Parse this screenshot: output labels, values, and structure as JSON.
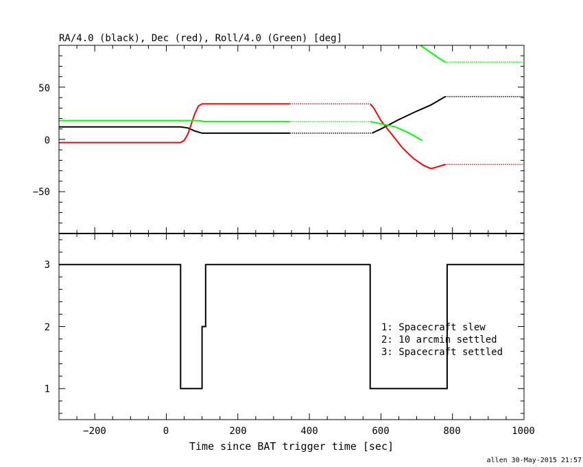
{
  "chart_data": [
    {
      "type": "line",
      "title": "RA/4.0 (black), Dec (red), Roll/4.0 (Green) [deg]",
      "xlim": [
        -300,
        1000
      ],
      "ylim": [
        -90,
        90
      ],
      "yticks": [
        -50,
        0,
        50
      ],
      "ytick_labels": [
        "−50",
        "0",
        "50"
      ],
      "series": [
        {
          "color": "#000000",
          "style": "solid",
          "points": [
            [
              -300,
              12
            ],
            [
              40,
              12
            ],
            [
              60,
              11
            ],
            [
              80,
              8
            ],
            [
              100,
              6
            ],
            [
              345,
              6
            ]
          ]
        },
        {
          "color": "#000000",
          "style": "dotted",
          "points": [
            [
              345,
              6
            ],
            [
              575,
              6
            ]
          ]
        },
        {
          "color": "#000000",
          "style": "solid",
          "points": [
            [
              575,
              6
            ],
            [
              600,
              10
            ],
            [
              650,
              19
            ],
            [
              700,
              27
            ],
            [
              740,
              33
            ],
            [
              780,
              41
            ]
          ]
        },
        {
          "color": "#000000",
          "style": "dotted",
          "points": [
            [
              780,
              41
            ],
            [
              1000,
              41
            ]
          ]
        },
        {
          "color": "#ff0000",
          "style": "solid",
          "points": [
            [
              -300,
              -3
            ],
            [
              40,
              -3
            ],
            [
              50,
              -1
            ],
            [
              60,
              5
            ],
            [
              70,
              15
            ],
            [
              80,
              25
            ],
            [
              90,
              32
            ],
            [
              100,
              34
            ],
            [
              345,
              34
            ]
          ]
        },
        {
          "color": "#ff0000",
          "style": "dotted",
          "points": [
            [
              345,
              34
            ],
            [
              570,
              34
            ]
          ]
        },
        {
          "color": "#ff0000",
          "style": "solid",
          "points": [
            [
              570,
              34
            ],
            [
              580,
              30
            ],
            [
              600,
              18
            ],
            [
              630,
              5
            ],
            [
              660,
              -8
            ],
            [
              690,
              -18
            ],
            [
              720,
              -25
            ],
            [
              740,
              -28
            ],
            [
              760,
              -26
            ],
            [
              780,
              -24
            ]
          ]
        },
        {
          "color": "#ff0000",
          "style": "dotted",
          "points": [
            [
              780,
              -24
            ],
            [
              1000,
              -24
            ]
          ]
        },
        {
          "color": "#00ff00",
          "style": "solid",
          "points": [
            [
              -300,
              18
            ],
            [
              90,
              18
            ],
            [
              110,
              17
            ],
            [
              345,
              17
            ]
          ]
        },
        {
          "color": "#00ff00",
          "style": "dotted",
          "points": [
            [
              345,
              17
            ],
            [
              570,
              17
            ]
          ]
        },
        {
          "color": "#00ff00",
          "style": "solid",
          "points": [
            [
              570,
              17
            ],
            [
              600,
              15
            ],
            [
              640,
              12
            ],
            [
              680,
              6
            ],
            [
              715,
              -1
            ]
          ]
        },
        {
          "color": "#00ff00",
          "style": "solid",
          "points": [
            [
              710,
              90
            ],
            [
              740,
              83
            ],
            [
              770,
              76
            ],
            [
              780,
              74
            ]
          ]
        },
        {
          "color": "#00ff00",
          "style": "dotted",
          "points": [
            [
              780,
              74
            ],
            [
              1000,
              74
            ]
          ]
        }
      ]
    },
    {
      "type": "line",
      "xlabel": "Time since BAT trigger time [sec]",
      "xlim": [
        -300,
        1000
      ],
      "ylim": [
        0.5,
        3.5
      ],
      "xticks": [
        -200,
        0,
        200,
        400,
        600,
        800,
        1000
      ],
      "xtick_labels": [
        "−200",
        "0",
        "200",
        "400",
        "600",
        "800",
        "1000"
      ],
      "yticks": [
        1,
        2,
        3
      ],
      "ytick_labels": [
        "1",
        "2",
        "3"
      ],
      "series": [
        {
          "color": "#000000",
          "style": "step",
          "points": [
            [
              -300,
              3
            ],
            [
              40,
              3
            ],
            [
              40,
              1
            ],
            [
              100,
              1
            ],
            [
              100,
              2
            ],
            [
              110,
              2
            ],
            [
              110,
              3
            ],
            [
              570,
              3
            ],
            [
              570,
              1
            ],
            [
              785,
              1
            ],
            [
              785,
              3
            ],
            [
              1000,
              3
            ]
          ]
        }
      ],
      "annotations": [
        "1: Spacecraft slew",
        "2: 10 arcmin settled",
        "3: Spacecraft settled"
      ]
    }
  ],
  "footer": {
    "stamp": "allen 30-May-2015 21:57"
  }
}
